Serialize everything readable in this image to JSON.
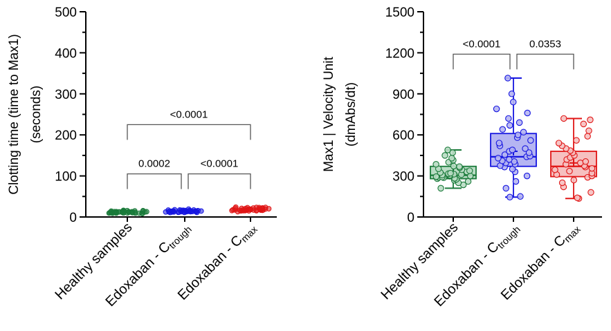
{
  "chart_data": [
    {
      "type": "scatter",
      "chart": "dot-plot",
      "title": "",
      "ylabel_lines": [
        "Clotting time (time to Max1)",
        "(seconds)"
      ],
      "ylim": [
        0,
        500
      ],
      "yticks": [
        0,
        100,
        200,
        300,
        400,
        500
      ],
      "categories": [
        {
          "main": "Healthy samples",
          "sub": ""
        },
        {
          "main": "Edoxaban - C",
          "sub": "trough"
        },
        {
          "main": "Edoxaban - C",
          "sub": "max"
        }
      ],
      "colors": [
        "#1a7a3a",
        "#1515e0",
        "#e01515"
      ],
      "series": [
        {
          "values": [
            11,
            12,
            13,
            12,
            11,
            12,
            13,
            14,
            12,
            11,
            12,
            13,
            12,
            11,
            10,
            12,
            13,
            12,
            11,
            12,
            13,
            12,
            14,
            11,
            12,
            13,
            12,
            11,
            12,
            13,
            11,
            12,
            13,
            12,
            11,
            12,
            13,
            12,
            11,
            12
          ]
        },
        {
          "values": [
            13,
            14,
            15,
            12,
            16,
            14,
            13,
            15,
            14,
            12,
            17,
            13,
            14,
            15,
            16,
            14,
            13,
            12,
            15,
            14,
            16,
            13,
            14,
            15,
            12,
            14,
            13,
            16,
            14,
            15,
            13,
            14,
            15,
            12,
            16,
            14,
            13,
            15,
            14,
            13
          ]
        },
        {
          "values": [
            17,
            18,
            19,
            16,
            20,
            18,
            17,
            21,
            19,
            16,
            22,
            18,
            17,
            19,
            20,
            18,
            17,
            16,
            21,
            18,
            19,
            17,
            20,
            18,
            16,
            22,
            19,
            17,
            18,
            20,
            17,
            19,
            18,
            16,
            21,
            18,
            17,
            19,
            20,
            18
          ]
        }
      ],
      "comparisons": [
        {
          "from": 0,
          "to": 1,
          "y": 105,
          "label": "0.0002"
        },
        {
          "from": 1,
          "to": 2,
          "y": 105,
          "label": "<0.0001"
        },
        {
          "from": 0,
          "to": 2,
          "y": 225,
          "label": "<0.0001"
        }
      ]
    },
    {
      "type": "box",
      "chart": "box-plot",
      "title": "",
      "ylabel_lines": [
        "Max1 | Velocity Unit",
        "(dmAbs/dt)"
      ],
      "ylim": [
        0,
        1500
      ],
      "yticks": [
        0,
        300,
        600,
        900,
        1200,
        1500
      ],
      "categories": [
        {
          "main": "Healthy samples",
          "sub": ""
        },
        {
          "main": "Edoxaban - C",
          "sub": "trough"
        },
        {
          "main": "Edoxaban - C",
          "sub": "max"
        }
      ],
      "colors": [
        "#1a7a3a",
        "#1515e0",
        "#e01515"
      ],
      "fills": [
        "#b9dcc4",
        "#b5b5f2",
        "#f6c0c0"
      ],
      "series": [
        {
          "min": 210,
          "q1": 280,
          "median": 305,
          "q3": 370,
          "max": 490,
          "mean": 318,
          "points": [
            210,
            235,
            250,
            260,
            268,
            275,
            280,
            283,
            287,
            290,
            292,
            295,
            298,
            300,
            303,
            305,
            307,
            310,
            313,
            316,
            320,
            325,
            330,
            338,
            345,
            352,
            360,
            368,
            372,
            385,
            400,
            415,
            430,
            450,
            470,
            490
          ]
        },
        {
          "min": 145,
          "q1": 370,
          "median": 440,
          "q3": 610,
          "max": 1015,
          "mean": 480,
          "points": [
            145,
            150,
            210,
            260,
            300,
            330,
            350,
            365,
            375,
            385,
            395,
            405,
            410,
            420,
            430,
            440,
            445,
            455,
            470,
            480,
            490,
            500,
            520,
            540,
            560,
            580,
            600,
            620,
            640,
            670,
            690,
            720,
            760,
            790,
            840,
            900,
            1015
          ]
        },
        {
          "min": 135,
          "q1": 295,
          "median": 370,
          "q3": 480,
          "max": 720,
          "mean": 395,
          "points": [
            135,
            140,
            180,
            220,
            250,
            270,
            290,
            300,
            310,
            320,
            335,
            345,
            355,
            365,
            375,
            385,
            395,
            405,
            420,
            435,
            450,
            470,
            485,
            500,
            520,
            540,
            560,
            590,
            630,
            680,
            710,
            720
          ]
        }
      ],
      "comparisons": [
        {
          "from": 0,
          "to": 1,
          "y": 1190,
          "label": "<0.0001"
        },
        {
          "from": 1,
          "to": 2,
          "y": 1190,
          "label": "0.0353"
        }
      ]
    }
  ]
}
